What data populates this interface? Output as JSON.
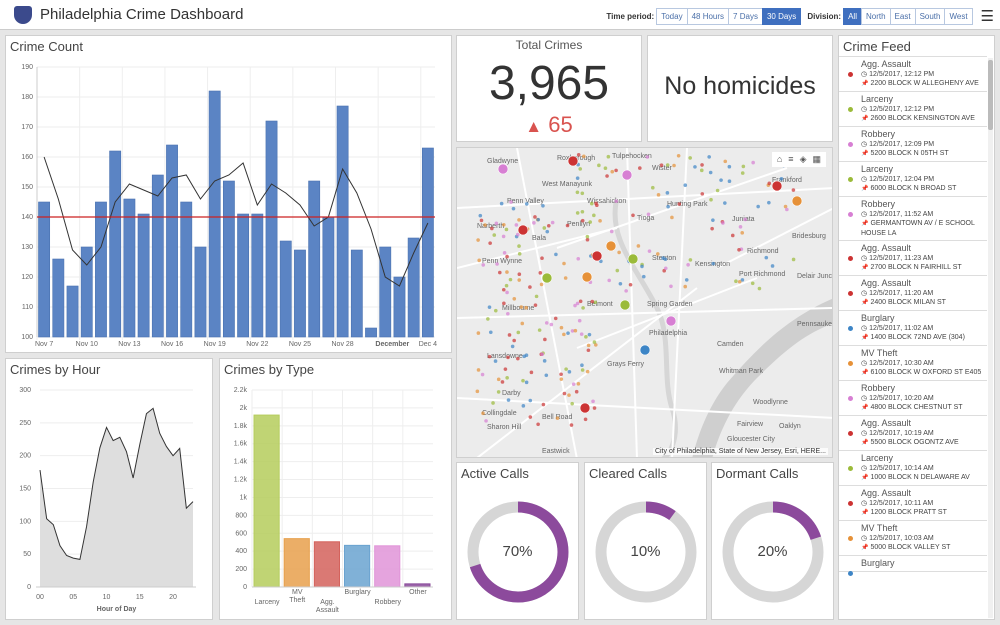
{
  "header": {
    "title": "Philadelphia Crime Dashboard",
    "time_label": "Time period:",
    "time_options": [
      "Today",
      "48 Hours",
      "7 Days",
      "30 Days"
    ],
    "time_selected": "30 Days",
    "division_label": "Division:",
    "division_options": [
      "All",
      "North",
      "East",
      "South",
      "West"
    ],
    "division_selected": "All",
    "menu_icon": "hamburger-icon",
    "logo_icon": "police-badge-icon"
  },
  "crime_count": {
    "title": "Crime Count",
    "chart_data": {
      "type": "bar",
      "ylim": [
        100,
        190
      ],
      "yticks": [
        100,
        110,
        120,
        130,
        140,
        150,
        160,
        170,
        180,
        190
      ],
      "xtick_labels": [
        "Nov 7",
        "Nov 10",
        "Nov 13",
        "Nov 16",
        "Nov 19",
        "Nov 22",
        "Nov 25",
        "Nov 28",
        "December",
        "Dec 4"
      ],
      "categories": [
        "Nov 7",
        "Nov 8",
        "Nov 9",
        "Nov 10",
        "Nov 11",
        "Nov 12",
        "Nov 13",
        "Nov 14",
        "Nov 15",
        "Nov 16",
        "Nov 17",
        "Nov 18",
        "Nov 19",
        "Nov 20",
        "Nov 21",
        "Nov 22",
        "Nov 23",
        "Nov 24",
        "Nov 25",
        "Nov 26",
        "Nov 27",
        "Nov 28",
        "Nov 29",
        "Nov 30",
        "Dec 1",
        "Dec 2",
        "Dec 3",
        "Dec 4"
      ],
      "values": [
        145,
        126,
        117,
        130,
        145,
        162,
        146,
        141,
        154,
        164,
        145,
        130,
        182,
        152,
        141,
        141,
        172,
        132,
        129,
        152,
        140,
        177,
        129,
        103,
        130,
        120,
        133,
        163
      ],
      "line_values": [
        160,
        146,
        129,
        124,
        130,
        145,
        151,
        149,
        147,
        153,
        154,
        146,
        152,
        154,
        158,
        144,
        151,
        148,
        144,
        137,
        140,
        156,
        148,
        136,
        120,
        117,
        128,
        138
      ],
      "reference_line": 140,
      "bar_color": "#5b84c4",
      "line_color": "#333333",
      "reference_color": "#cc2222",
      "grid": true
    }
  },
  "total": {
    "title": "Total Crimes",
    "value": "3,965",
    "change": "65",
    "change_icon": "triangle-up-icon",
    "change_color": "#d9534f"
  },
  "homicides": {
    "text": "No homicides"
  },
  "crimes_by_hour": {
    "title": "Crimes by Hour",
    "chart_data": {
      "type": "area",
      "xlabel": "Hour of Day",
      "ylim": [
        0,
        300
      ],
      "yticks": [
        0,
        50,
        100,
        150,
        200,
        250,
        300
      ],
      "xticks": [
        "00",
        "05",
        "10",
        "15",
        "20"
      ],
      "x": [
        0,
        1,
        2,
        3,
        4,
        5,
        6,
        7,
        8,
        9,
        10,
        11,
        12,
        13,
        14,
        15,
        16,
        17,
        18,
        19,
        20,
        21,
        22,
        23
      ],
      "values": [
        178,
        104,
        95,
        63,
        48,
        44,
        42,
        92,
        160,
        212,
        243,
        223,
        228,
        206,
        166,
        217,
        264,
        272,
        234,
        214,
        200,
        211,
        120,
        130
      ],
      "grid": true
    }
  },
  "crimes_by_type": {
    "title": "Crimes by Type",
    "chart_data": {
      "type": "bar",
      "ylim": [
        0,
        2200
      ],
      "yticks": [
        "0",
        "200",
        "400",
        "600",
        "800",
        "1k",
        "1.2k",
        "1.4k",
        "1.6k",
        "1.8k",
        "2k",
        "2.2k"
      ],
      "categories": [
        "Larceny",
        "MV\nTheft",
        "Agg.\nAssault",
        "Burglary",
        "Robbery",
        "Other"
      ],
      "values": [
        1920,
        540,
        505,
        465,
        460,
        35
      ],
      "colors": [
        "#b5cc5c",
        "#e8a04c",
        "#d4625c",
        "#6aa3d0",
        "#e194d8",
        "#8a4a9a"
      ],
      "grid": true
    }
  },
  "map": {
    "labels": [
      "Gladwyne",
      "Roxborough",
      "Tulpehocken",
      "Wister",
      "Frankford",
      "West Manayunk",
      "Penn Valley",
      "Wissahickon",
      "Hunting Park",
      "Narberth",
      "Penllyn",
      "Tioga",
      "Juniata",
      "Bridesburg",
      "Bala",
      "Penn Wynne",
      "Stenton",
      "Kensington",
      "Richmond",
      "Port Richmond",
      "Delair Junction",
      "Millbourne",
      "Belmont",
      "Spring Garden",
      "Philadelphia",
      "Pennsauken",
      "Camden",
      "Lansdowne",
      "Grays Ferry",
      "Whitman Park",
      "Darby",
      "Collingdale",
      "Sharon Hill",
      "Bell Road",
      "Woodlynne",
      "Fairview",
      "Oaklyn",
      "Gloucester City",
      "Eastwick"
    ],
    "attribution": "City of Philadelphia, State of New Jersey, Esri, HERE...",
    "tools": [
      "home-icon",
      "legend-list-icon",
      "layers-icon",
      "basemap-gallery-icon"
    ]
  },
  "gauges": [
    {
      "title": "Active Calls",
      "value": "70%",
      "fraction": 0.7
    },
    {
      "title": "Cleared Calls",
      "value": "10%",
      "fraction": 0.1
    },
    {
      "title": "Dormant Calls",
      "value": "20%",
      "fraction": 0.2
    }
  ],
  "gauge_color": "#8c4a9c",
  "feed": {
    "title": "Crime Feed",
    "items": [
      {
        "type": "Agg. Assault",
        "time": "12/5/2017, 12:12 PM",
        "address": "2200 BLOCK W ALLEGHENY AVE",
        "color": "#cc3333"
      },
      {
        "type": "Larceny",
        "time": "12/5/2017, 12:12 PM",
        "address": "2600 BLOCK KENSINGTON AVE",
        "color": "#9bbb3a"
      },
      {
        "type": "Robbery",
        "time": "12/5/2017, 12:09 PM",
        "address": "5200 BLOCK N 05TH ST",
        "color": "#d77fd3"
      },
      {
        "type": "Larceny",
        "time": "12/5/2017, 12:04 PM",
        "address": "6000 BLOCK N BROAD ST",
        "color": "#9bbb3a"
      },
      {
        "type": "Robbery",
        "time": "12/5/2017, 11:52 AM",
        "address": "GERMANTOWN AV / E SCHOOL HOUSE LA",
        "color": "#d77fd3"
      },
      {
        "type": "Agg. Assault",
        "time": "12/5/2017, 11:23 AM",
        "address": "2700 BLOCK N FAIRHILL ST",
        "color": "#cc3333"
      },
      {
        "type": "Agg. Assault",
        "time": "12/5/2017, 11:20 AM",
        "address": "2400 BLOCK MILAN ST",
        "color": "#cc3333"
      },
      {
        "type": "Burglary",
        "time": "12/5/2017, 11:02 AM",
        "address": "1400 BLOCK 72ND AVE (304)",
        "color": "#3d85c6"
      },
      {
        "type": "MV Theft",
        "time": "12/5/2017, 10:30 AM",
        "address": "6100 BLOCK W OXFORD ST E405",
        "color": "#e69138"
      },
      {
        "type": "Robbery",
        "time": "12/5/2017, 10:20 AM",
        "address": "4800 BLOCK CHESTNUT ST",
        "color": "#d77fd3"
      },
      {
        "type": "Agg. Assault",
        "time": "12/5/2017, 10:19 AM",
        "address": "5500 BLOCK OGONTZ AVE",
        "color": "#cc3333"
      },
      {
        "type": "Larceny",
        "time": "12/5/2017, 10:14 AM",
        "address": "1000 BLOCK N DELAWARE AV",
        "color": "#9bbb3a"
      },
      {
        "type": "Agg. Assault",
        "time": "12/5/2017, 10:11 AM",
        "address": "1200 BLOCK PRATT ST",
        "color": "#cc3333"
      },
      {
        "type": "MV Theft",
        "time": "12/5/2017, 10:03 AM",
        "address": "5000 BLOCK VALLEY ST",
        "color": "#e69138"
      },
      {
        "type": "Burglary",
        "time": "",
        "address": "",
        "color": "#3d85c6"
      }
    ]
  }
}
